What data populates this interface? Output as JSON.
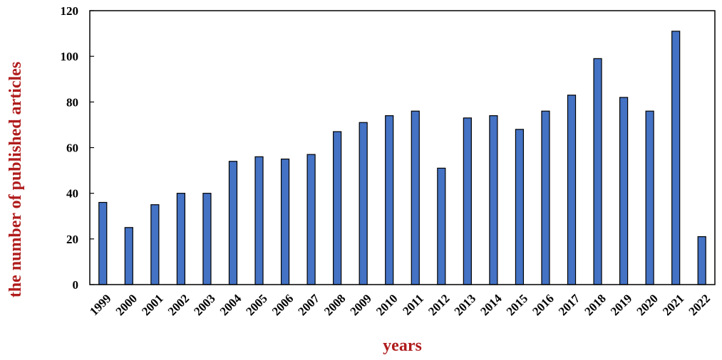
{
  "chart_data": {
    "type": "bar",
    "title": "",
    "xlabel": "years",
    "ylabel": "the number of published articles",
    "categories": [
      "1999",
      "2000",
      "2001",
      "2002",
      "2003",
      "2004",
      "2005",
      "2006",
      "2007",
      "2008",
      "2009",
      "2010",
      "2011",
      "2012",
      "2013",
      "2014",
      "2015",
      "2016",
      "2017",
      "2018",
      "2019",
      "2020",
      "2021",
      "2022"
    ],
    "values": [
      36,
      25,
      35,
      40,
      40,
      54,
      56,
      55,
      57,
      67,
      71,
      74,
      76,
      51,
      73,
      74,
      68,
      76,
      83,
      99,
      82,
      76,
      111,
      21
    ],
    "ylim": [
      0,
      120
    ],
    "yticks": [
      "0",
      "20",
      "40",
      "60",
      "80",
      "100",
      "120"
    ],
    "grid": false,
    "legend": "none",
    "colors": {
      "bar": "#4472c4",
      "bar_edge": "#000000",
      "axis_title": "#b01c1c"
    }
  }
}
